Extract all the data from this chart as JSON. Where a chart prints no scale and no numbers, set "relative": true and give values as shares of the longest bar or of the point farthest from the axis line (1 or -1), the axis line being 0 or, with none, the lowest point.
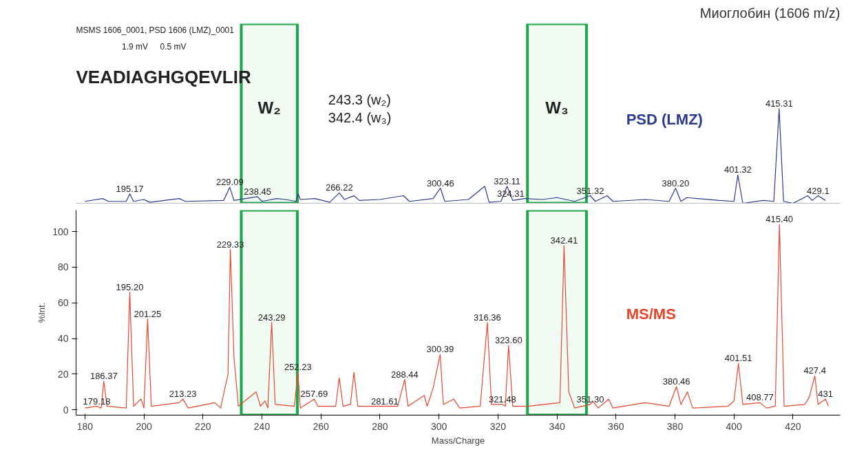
{
  "chart_data": [
    {
      "type": "line",
      "title": "Миоглобин (1606 m/z)",
      "relative": true,
      "tick_labels": false,
      "grid": false,
      "xlim": [
        177,
        436
      ],
      "annotations": [
        "MSMS 1606_0001, PSD 1606 (LMZ)_0001",
        "1.9 mV",
        "0.5 mV",
        "VEADIAGHGQEVLIR",
        "243.3 (w₂)",
        "342.4 (w₃)",
        {
          "text": "195.17",
          "x": 195.2,
          "y": 0.1
        },
        {
          "text": "229.09",
          "x": 229.1,
          "y": 0.17
        },
        {
          "text": "238.45",
          "x": 238.5,
          "y": 0.07
        },
        {
          "text": "266.22",
          "x": 266.2,
          "y": 0.11
        },
        {
          "text": "300.46",
          "x": 300.5,
          "y": 0.16
        },
        {
          "text": "323.11",
          "x": 323.1,
          "y": 0.18
        },
        {
          "text": "324.31",
          "x": 324.3,
          "y": 0.05
        },
        {
          "text": "351.32",
          "x": 351.3,
          "y": 0.08
        },
        {
          "text": "380.20",
          "x": 380.2,
          "y": 0.16
        },
        {
          "text": "401.32",
          "x": 401.3,
          "y": 0.3
        },
        {
          "text": "415.31",
          "x": 415.3,
          "y": 1.0
        },
        {
          "text": "429.1",
          "x": 428.5,
          "y": 0.08
        }
      ],
      "bands": [
        {
          "axis": "x",
          "from": 233,
          "to": 252,
          "label": "W₂",
          "color": "#1fa64a"
        },
        {
          "axis": "x",
          "from": 330,
          "to": 350,
          "label": "W₃",
          "color": "#1fa64a"
        }
      ],
      "series": [
        {
          "name": "PSD (LMZ)",
          "color": "#2b3a8f",
          "x": [
            180,
            186,
            188,
            194,
            195.2,
            196.5,
            200,
            202,
            212,
            214,
            227,
            229.1,
            230.5,
            238.5,
            240,
            245,
            248,
            251.5,
            252.3,
            253,
            258,
            263,
            266.2,
            268,
            271.2,
            273,
            280,
            288,
            290,
            298,
            300.5,
            302,
            310,
            315.5,
            317,
            321,
            323.1,
            325,
            329,
            335,
            340,
            346,
            351.3,
            353,
            357,
            359,
            370,
            378,
            380.2,
            382,
            384,
            395,
            400,
            401.3,
            403,
            410,
            413.5,
            415.3,
            416.8,
            420,
            425,
            426.5,
            428.5,
            431
          ],
          "values": [
            0.02,
            0.05,
            0.02,
            0.02,
            0.1,
            0.02,
            0.04,
            0.01,
            0.05,
            0.02,
            0.03,
            0.17,
            0.03,
            0.07,
            0.02,
            0.05,
            0.04,
            0.02,
            0.1,
            0.04,
            0.05,
            0.01,
            0.11,
            0.04,
            0.08,
            0.03,
            0.04,
            0.08,
            0.02,
            0.05,
            0.16,
            0.02,
            0.04,
            0.18,
            0.01,
            0.02,
            0.18,
            0.03,
            0.05,
            0.04,
            0.06,
            0.02,
            0.08,
            0.02,
            0.08,
            0.02,
            0.04,
            0.02,
            0.16,
            0.02,
            0.06,
            0.03,
            0.02,
            0.3,
            0.0,
            0.03,
            0.02,
            1.0,
            0.02,
            0.0,
            0.08,
            0.03,
            0.08,
            0.03
          ]
        }
      ]
    },
    {
      "type": "line",
      "xlabel": "Mass/Charge",
      "ylabel": "%Int.",
      "grid": false,
      "xlim": [
        177,
        436
      ],
      "ylim": [
        -3,
        112
      ],
      "xticks": [
        180,
        200,
        220,
        240,
        260,
        280,
        300,
        320,
        340,
        360,
        380,
        400,
        420
      ],
      "yticks": [
        0,
        20,
        40,
        60,
        80,
        100
      ],
      "annotations": [
        {
          "text": "179.18",
          "x": 184,
          "y": 2
        },
        {
          "text": "186.37",
          "x": 186.4,
          "y": 16
        },
        {
          "text": "195.20",
          "x": 195.2,
          "y": 66
        },
        {
          "text": "201.25",
          "x": 201.25,
          "y": 51
        },
        {
          "text": "213.23",
          "x": 213.2,
          "y": 6
        },
        {
          "text": "229.33",
          "x": 229.3,
          "y": 90
        },
        {
          "text": "243.29",
          "x": 243.3,
          "y": 49
        },
        {
          "text": "252.23",
          "x": 252.2,
          "y": 21
        },
        {
          "text": "257.69",
          "x": 257.7,
          "y": 6
        },
        {
          "text": "281.61",
          "x": 281.6,
          "y": 2
        },
        {
          "text": "288.44",
          "x": 288.4,
          "y": 17
        },
        {
          "text": "300.39",
          "x": 300.4,
          "y": 31
        },
        {
          "text": "316.36",
          "x": 316.4,
          "y": 49
        },
        {
          "text": "321.48",
          "x": 321.5,
          "y": 3
        },
        {
          "text": "323.60",
          "x": 323.6,
          "y": 36
        },
        {
          "text": "342.41",
          "x": 342.4,
          "y": 92
        },
        {
          "text": "351.30",
          "x": 351.3,
          "y": 3
        },
        {
          "text": "380.46",
          "x": 380.5,
          "y": 13
        },
        {
          "text": "401.51",
          "x": 401.5,
          "y": 26
        },
        {
          "text": "408.77",
          "x": 408.8,
          "y": 4
        },
        {
          "text": "415.40",
          "x": 415.4,
          "y": 104
        },
        {
          "text": "427.4",
          "x": 427.4,
          "y": 19
        },
        {
          "text": "431",
          "x": 431,
          "y": 6
        }
      ],
      "bands": [
        {
          "axis": "x",
          "from": 233,
          "to": 252,
          "color": "#1fa64a"
        },
        {
          "axis": "x",
          "from": 330,
          "to": 350,
          "color": "#1fa64a"
        }
      ],
      "series": [
        {
          "name": "MS/MS",
          "color": "#e8462a",
          "x": [
            180,
            184,
            185.5,
            186.4,
            187.5,
            194,
            195.2,
            196.5,
            199,
            200,
            201.25,
            202.5,
            212,
            213.2,
            215,
            224,
            226,
            228.5,
            229.3,
            230.5,
            232,
            238,
            239.5,
            241,
            242,
            243.3,
            244.5,
            251,
            252.2,
            253,
            257.7,
            259,
            265,
            266.2,
            267.5,
            270,
            271.2,
            272.5,
            281.6,
            286,
            288.4,
            289.5,
            295,
            296,
            298,
            300.4,
            301.5,
            305,
            307,
            314,
            316.4,
            317.8,
            321.5,
            322.5,
            323.6,
            325,
            330,
            341,
            342.4,
            344,
            346,
            351.3,
            352,
            354,
            357.5,
            359,
            370,
            378,
            380.5,
            382,
            384.2,
            386,
            398,
            400,
            401.5,
            403,
            408.8,
            411,
            414,
            415.4,
            417,
            424,
            425.5,
            427.4,
            428.5,
            431,
            432
          ],
          "values": [
            1,
            2,
            1,
            16,
            2,
            1,
            66,
            2,
            6,
            1,
            51,
            2,
            4,
            6,
            1,
            4,
            1,
            20,
            90,
            30,
            2,
            10,
            2,
            5,
            1,
            49,
            3,
            2,
            21,
            1,
            6,
            2,
            2,
            18,
            2,
            3,
            21,
            2,
            2,
            2,
            17,
            2,
            8,
            2,
            12,
            31,
            3,
            6,
            1,
            2,
            49,
            3,
            3,
            2,
            36,
            2,
            2,
            4,
            92,
            10,
            1,
            3,
            5,
            1,
            6,
            1,
            4,
            2,
            13,
            3,
            10,
            1,
            2,
            5,
            26,
            3,
            4,
            1,
            2,
            104,
            2,
            3,
            7,
            19,
            3,
            6,
            2
          ]
        }
      ]
    }
  ]
}
